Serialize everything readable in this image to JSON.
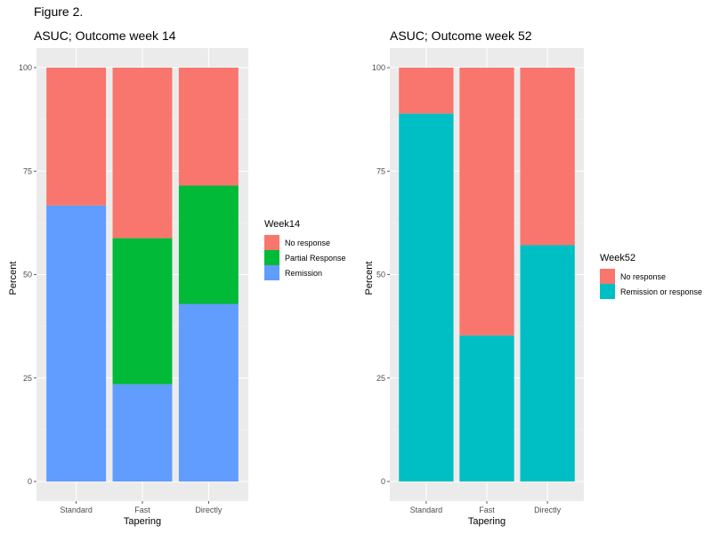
{
  "figure_caption": "Figure 2.",
  "chart_data": [
    {
      "type": "bar",
      "stacked": true,
      "title": "ASUC; Outcome week 14",
      "xlabel": "Tapering",
      "ylabel": "Percent",
      "categories": [
        "Standard",
        "Fast",
        "Directly"
      ],
      "ylim": [
        0,
        100
      ],
      "yticks": [
        0,
        25,
        50,
        75,
        100
      ],
      "grid": true,
      "legend_title": "Week14",
      "legend_position": "right",
      "series": [
        {
          "name": "Remission",
          "color": "#619CFF",
          "values": [
            66.7,
            23.5,
            42.9
          ]
        },
        {
          "name": "Partial Response",
          "color": "#00BA38",
          "values": [
            0,
            35.3,
            28.6
          ]
        },
        {
          "name": "No response",
          "color": "#F8766D",
          "values": [
            33.3,
            41.2,
            28.5
          ]
        }
      ],
      "legend_order": [
        "No response",
        "Partial Response",
        "Remission"
      ]
    },
    {
      "type": "bar",
      "stacked": true,
      "title": "ASUC; Outcome week 52",
      "xlabel": "Tapering",
      "ylabel": "Percent",
      "categories": [
        "Standard",
        "Fast",
        "Directly"
      ],
      "ylim": [
        0,
        100
      ],
      "yticks": [
        0,
        25,
        50,
        75,
        100
      ],
      "grid": true,
      "legend_title": "Week52",
      "legend_position": "right",
      "series": [
        {
          "name": "Remission or response",
          "color": "#00BFC4",
          "values": [
            88.9,
            35.3,
            57.1
          ]
        },
        {
          "name": "No response",
          "color": "#F8766D",
          "values": [
            11.1,
            64.7,
            42.9
          ]
        }
      ],
      "legend_order": [
        "No response",
        "Remission or response"
      ]
    }
  ]
}
